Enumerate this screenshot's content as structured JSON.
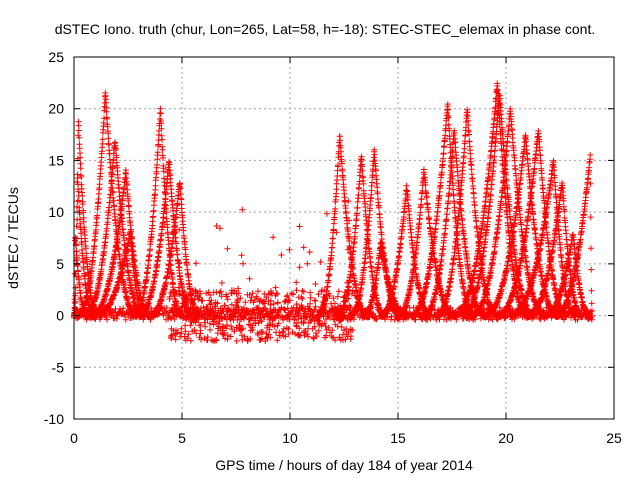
{
  "chart_data": {
    "type": "scatter",
    "title": "dSTEC Iono. truth (chur, Lon=265, Lat=58, h=-18): STEC-STEC_elemax in phase cont.",
    "xlabel": "GPS time / hours of day 184 of year 2014",
    "ylabel": "dSTEC  / TECUs",
    "xlim": [
      0,
      25
    ],
    "ylim": [
      -10,
      25
    ],
    "xticks": [
      0,
      5,
      10,
      15,
      20,
      25
    ],
    "yticks": [
      -10,
      -5,
      0,
      5,
      10,
      15,
      20,
      25
    ],
    "grid": true,
    "marker": "+",
    "series_color": "#ff0000",
    "arcs_description_note": "",
    "arcs": [
      {
        "start": 0.0,
        "peak_t": 0.15,
        "end": 0.9,
        "peak": 14
      },
      {
        "start": 0.0,
        "peak_t": 0.2,
        "end": 1.1,
        "peak": 19
      },
      {
        "start": 0.0,
        "peak_t": 0.05,
        "end": 0.6,
        "peak": 8
      },
      {
        "start": 0.2,
        "peak_t": 1.45,
        "end": 2.9,
        "peak": 21.5
      },
      {
        "start": 0.5,
        "peak_t": 1.9,
        "end": 3.2,
        "peak": 17
      },
      {
        "start": 0.8,
        "peak_t": 2.4,
        "end": 3.5,
        "peak": 14
      },
      {
        "start": 1.0,
        "peak_t": 2.6,
        "end": 3.3,
        "peak": 8
      },
      {
        "start": 2.8,
        "peak_t": 4.0,
        "end": 5.0,
        "peak": 20
      },
      {
        "start": 3.0,
        "peak_t": 4.4,
        "end": 5.5,
        "peak": 15
      },
      {
        "start": 3.5,
        "peak_t": 4.9,
        "end": 5.8,
        "peak": 13
      },
      {
        "start": 11.3,
        "peak_t": 12.3,
        "end": 13.6,
        "peak": 17.5
      },
      {
        "start": 12.2,
        "peak_t": 13.3,
        "end": 14.4,
        "peak": 15.5
      },
      {
        "start": 12.8,
        "peak_t": 13.9,
        "end": 15.1,
        "peak": 16
      },
      {
        "start": 13.4,
        "peak_t": 14.2,
        "end": 15.4,
        "peak": 7
      },
      {
        "start": 14.2,
        "peak_t": 15.4,
        "end": 16.5,
        "peak": 12.5
      },
      {
        "start": 15.0,
        "peak_t": 16.2,
        "end": 17.6,
        "peak": 14
      },
      {
        "start": 15.6,
        "peak_t": 17.3,
        "end": 18.5,
        "peak": 20.5
      },
      {
        "start": 16.2,
        "peak_t": 17.6,
        "end": 19.0,
        "peak": 18
      },
      {
        "start": 16.8,
        "peak_t": 18.2,
        "end": 19.6,
        "peak": 20
      },
      {
        "start": 17.6,
        "peak_t": 19.6,
        "end": 21.0,
        "peak": 22.5
      },
      {
        "start": 18.0,
        "peak_t": 19.7,
        "end": 21.3,
        "peak": 21.5
      },
      {
        "start": 18.4,
        "peak_t": 20.2,
        "end": 21.8,
        "peak": 20
      },
      {
        "start": 19.0,
        "peak_t": 20.9,
        "end": 22.4,
        "peak": 17.5
      },
      {
        "start": 19.6,
        "peak_t": 21.5,
        "end": 22.8,
        "peak": 18
      },
      {
        "start": 20.2,
        "peak_t": 22.2,
        "end": 23.2,
        "peak": 15
      },
      {
        "start": 21.0,
        "peak_t": 22.6,
        "end": 23.5,
        "peak": 13
      },
      {
        "start": 21.8,
        "peak_t": 23.1,
        "end": 23.9,
        "peak": 8
      },
      {
        "start": 22.3,
        "peak_t": 23.9,
        "end": 24.0,
        "peak": 15.5
      }
    ]
  }
}
